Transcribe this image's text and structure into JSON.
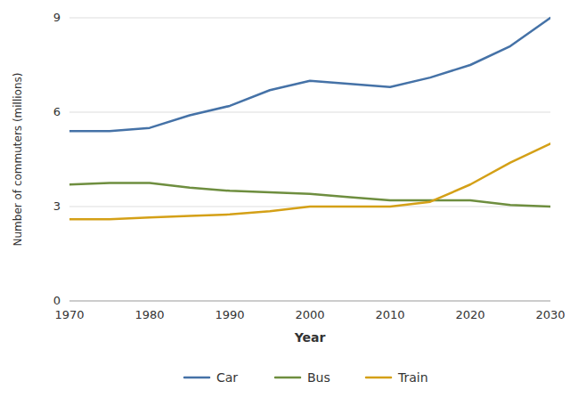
{
  "chart_data": {
    "type": "line",
    "x": [
      1970,
      1975,
      1980,
      1985,
      1990,
      1995,
      2000,
      2005,
      2010,
      2015,
      2020,
      2025,
      2030
    ],
    "series": [
      {
        "name": "Car",
        "color": "#4572a7",
        "values": [
          5.4,
          5.4,
          5.5,
          5.9,
          6.2,
          6.7,
          7.0,
          6.9,
          6.8,
          7.1,
          7.5,
          8.1,
          9.0
        ]
      },
      {
        "name": "Bus",
        "color": "#6e8e3f",
        "values": [
          3.7,
          3.75,
          3.75,
          3.6,
          3.5,
          3.45,
          3.4,
          3.3,
          3.2,
          3.2,
          3.2,
          3.05,
          3.0
        ]
      },
      {
        "name": "Train",
        "color": "#d4a017",
        "values": [
          2.6,
          2.6,
          2.65,
          2.7,
          2.75,
          2.85,
          3.0,
          3.0,
          3.0,
          3.15,
          3.7,
          4.4,
          5.0
        ]
      }
    ],
    "xlabel": "Year",
    "ylabel": "Number of commuters (millions)",
    "xlim": [
      1970,
      2030
    ],
    "xticks": [
      1970,
      1980,
      1990,
      2000,
      2010,
      2020,
      2030
    ],
    "ylim": [
      0,
      9
    ],
    "yticks": [
      0,
      3,
      6,
      9
    ],
    "grid": true,
    "legend": "bottom"
  }
}
